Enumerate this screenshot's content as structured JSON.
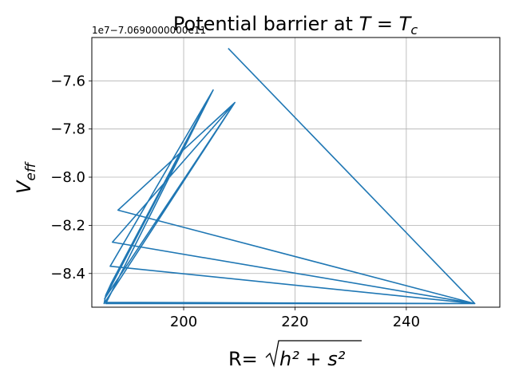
{
  "chart_data": {
    "type": "line",
    "title_prefix": "Potential barrier at ",
    "title_var": "T",
    "title_eq": " = ",
    "title_var2": "T",
    "title_sub": "c",
    "offset_text": "1e7−7.0690000000e11",
    "xlabel_prefix": "R=",
    "xlabel_radicand": "h² + s²",
    "ylabel_var": "V",
    "ylabel_sub": "eff",
    "xlim": [
      183.5,
      256.8
    ],
    "ylim": [
      -8.54,
      -7.42
    ],
    "x_ticks": [
      200,
      220,
      240
    ],
    "x_tick_labels": [
      "200",
      "220",
      "240"
    ],
    "y_ticks": [
      -8.4,
      -8.2,
      -8.0,
      -7.8,
      -7.6
    ],
    "y_tick_labels": [
      "−8.4",
      "−8.2",
      "−8.0",
      "−7.8",
      "−7.6"
    ],
    "grid": true,
    "color": "#1f77b4",
    "series": [
      {
        "x": [
          208.0,
          252.3,
          186.0,
          205.3,
          185.8,
          209.2,
          188.2,
          252.3,
          187.2,
          209.2,
          185.7,
          186.0,
          187.0,
          205.3,
          186.8,
          252.3,
          186.0,
          252.3,
          186.0,
          252.3
        ],
        "y": [
          -7.465,
          -8.525,
          -8.525,
          -7.638,
          -8.505,
          -7.69,
          -8.137,
          -8.525,
          -8.27,
          -7.69,
          -8.525,
          -8.49,
          -8.44,
          -7.638,
          -8.37,
          -8.525,
          -8.525,
          -8.525,
          -8.52,
          -8.525
        ]
      }
    ]
  }
}
